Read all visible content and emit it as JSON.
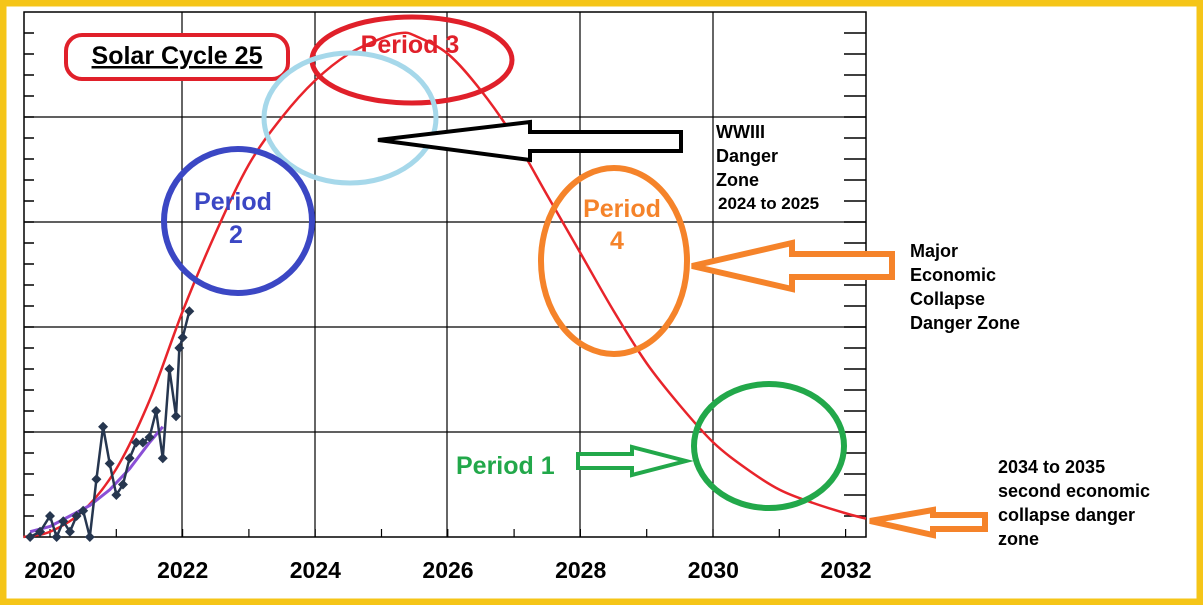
{
  "colors": {
    "frame": "#f5c518",
    "prediction_curve": "#e8242b",
    "observed_line": "#26364f",
    "smoothed_line": "#8a4fd6",
    "grid": "#000000",
    "red": "#e0202a",
    "light_blue": "#a6d8ea",
    "blue": "#3b47c4",
    "orange": "#f5832a",
    "green": "#22a84a"
  },
  "title": "Solar Cycle 25",
  "chart_data": {
    "type": "line",
    "title": "Solar Cycle 25",
    "xlabel": "",
    "ylabel": "",
    "xlim": [
      2020,
      2032.3
    ],
    "ylim": [
      0,
      1.0
    ],
    "grid": true,
    "x_tick_labels": [
      "2020",
      "2022",
      "2024",
      "2026",
      "2028",
      "2030",
      "2032"
    ],
    "series": [
      {
        "style": "smooth-red-curve",
        "x": [
          2019.6,
          2020,
          2020.5,
          2021,
          2021.5,
          2022,
          2022.5,
          2023,
          2023.5,
          2024,
          2024.5,
          2025,
          2025.3,
          2025.5,
          2026,
          2026.5,
          2027,
          2027.5,
          2028,
          2028.5,
          2029,
          2029.5,
          2030,
          2030.5,
          2031,
          2031.5,
          2032,
          2032.3
        ],
        "values": [
          0.0,
          0.01,
          0.05,
          0.13,
          0.26,
          0.43,
          0.58,
          0.71,
          0.8,
          0.87,
          0.92,
          0.95,
          0.96,
          0.955,
          0.92,
          0.85,
          0.76,
          0.65,
          0.54,
          0.43,
          0.33,
          0.25,
          0.18,
          0.13,
          0.09,
          0.065,
          0.045,
          0.035
        ]
      },
      {
        "style": "observed-diamond-line",
        "x": [
          2019.7,
          2019.85,
          2020.0,
          2020.1,
          2020.2,
          2020.3,
          2020.4,
          2020.5,
          2020.6,
          2020.7,
          2020.8,
          2020.9,
          2021.0,
          2021.1,
          2021.2,
          2021.3,
          2021.4,
          2021.5,
          2021.6,
          2021.7,
          2021.8,
          2021.9,
          2021.95,
          2022.0,
          2022.1
        ],
        "values": [
          0.0,
          0.01,
          0.04,
          0.0,
          0.03,
          0.01,
          0.04,
          0.05,
          0.0,
          0.11,
          0.21,
          0.14,
          0.08,
          0.1,
          0.15,
          0.18,
          0.18,
          0.19,
          0.24,
          0.15,
          0.32,
          0.23,
          0.36,
          0.38,
          0.43
        ]
      },
      {
        "style": "smoothed-purple-line",
        "x": [
          2019.7,
          2020.0,
          2020.3,
          2020.6,
          2020.9,
          2021.2,
          2021.5,
          2021.7
        ],
        "values": [
          0.01,
          0.02,
          0.04,
          0.06,
          0.09,
          0.13,
          0.18,
          0.21
        ]
      }
    ]
  },
  "annotations": {
    "period_1": "Period 1",
    "period_2_line1": "Period",
    "period_2_line2": "2",
    "period_3": "Period 3",
    "period_4_line1": "Period",
    "period_4_line2": "4",
    "wwiii": [
      "WWIII",
      "Danger",
      "Zone",
      "2024 to 2025"
    ],
    "major": [
      "Major",
      "Economic",
      "Collapse",
      "Danger Zone"
    ],
    "second": [
      "2034 to 2035",
      "second economic",
      "collapse danger",
      "zone"
    ]
  }
}
